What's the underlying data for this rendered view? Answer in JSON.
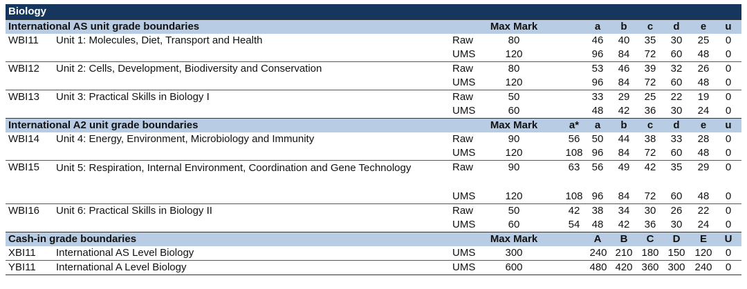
{
  "title": "Biology",
  "sections": [
    {
      "name": "International AS unit grade boundaries",
      "max_header": "Max Mark",
      "grade_headers": [
        "",
        "a",
        "b",
        "c",
        "d",
        "e",
        "u"
      ],
      "units": [
        {
          "code": "WBI11",
          "name": "Unit 1: Molecules, Diet, Transport and Health",
          "rows": [
            {
              "type": "Raw",
              "max": "80",
              "grades": [
                "",
                "46",
                "40",
                "35",
                "30",
                "25",
                "0"
              ]
            },
            {
              "type": "UMS",
              "max": "120",
              "grades": [
                "",
                "96",
                "84",
                "72",
                "60",
                "48",
                "0"
              ]
            }
          ]
        },
        {
          "code": "WBI12",
          "name": "Unit 2: Cells, Development, Biodiversity and Conservation",
          "rows": [
            {
              "type": "Raw",
              "max": "80",
              "grades": [
                "",
                "53",
                "46",
                "39",
                "32",
                "26",
                "0"
              ]
            },
            {
              "type": "UMS",
              "max": "120",
              "grades": [
                "",
                "96",
                "84",
                "72",
                "60",
                "48",
                "0"
              ]
            }
          ]
        },
        {
          "code": "WBI13",
          "name": "Unit 3: Practical Skills in Biology I",
          "rows": [
            {
              "type": "Raw",
              "max": "50",
              "grades": [
                "",
                "33",
                "29",
                "25",
                "22",
                "19",
                "0"
              ]
            },
            {
              "type": "UMS",
              "max": "60",
              "grades": [
                "",
                "48",
                "42",
                "36",
                "30",
                "24",
                "0"
              ]
            }
          ]
        }
      ]
    },
    {
      "name": "International A2 unit grade boundaries",
      "max_header": "Max Mark",
      "grade_headers": [
        "a*",
        "a",
        "b",
        "c",
        "d",
        "e",
        "u"
      ],
      "units": [
        {
          "code": "WBI14",
          "name": "Unit 4: Energy, Environment, Microbiology and Immunity",
          "rows": [
            {
              "type": "Raw",
              "max": "90",
              "grades": [
                "56",
                "50",
                "44",
                "38",
                "33",
                "28",
                "0"
              ]
            },
            {
              "type": "UMS",
              "max": "120",
              "grades": [
                "108",
                "96",
                "84",
                "72",
                "60",
                "48",
                "0"
              ]
            }
          ]
        },
        {
          "code": "WBI15",
          "name": "Unit 5: Respiration, Internal Environment, Coordination and Gene Technology",
          "rows": [
            {
              "type": "Raw",
              "max": "90",
              "grades": [
                "63",
                "56",
                "49",
                "42",
                "35",
                "29",
                "0"
              ]
            },
            {
              "type": "UMS",
              "max": "120",
              "grades": [
                "108",
                "96",
                "84",
                "72",
                "60",
                "48",
                "0"
              ]
            }
          ]
        },
        {
          "code": "WBI16",
          "name": "Unit 6: Practical Skills in Biology II",
          "rows": [
            {
              "type": "Raw",
              "max": "50",
              "grades": [
                "42",
                "38",
                "34",
                "30",
                "26",
                "22",
                "0"
              ]
            },
            {
              "type": "UMS",
              "max": "60",
              "grades": [
                "54",
                "48",
                "42",
                "36",
                "30",
                "24",
                "0"
              ]
            }
          ]
        }
      ]
    },
    {
      "name": "Cash-in grade boundaries",
      "max_header": "Max Mark",
      "grade_headers": [
        "",
        "A",
        "B",
        "C",
        "D",
        "E",
        "U"
      ],
      "units": [
        {
          "code": "XBI11",
          "name": "International AS Level Biology",
          "rows": [
            {
              "type": "UMS",
              "max": "300",
              "grades": [
                "",
                "240",
                "210",
                "180",
                "150",
                "120",
                "0"
              ]
            }
          ]
        },
        {
          "code": "YBI11",
          "name": "International A Level Biology",
          "rows": [
            {
              "type": "UMS",
              "max": "600",
              "grades": [
                "",
                "480",
                "420",
                "360",
                "300",
                "240",
                "0"
              ]
            }
          ]
        }
      ]
    }
  ]
}
